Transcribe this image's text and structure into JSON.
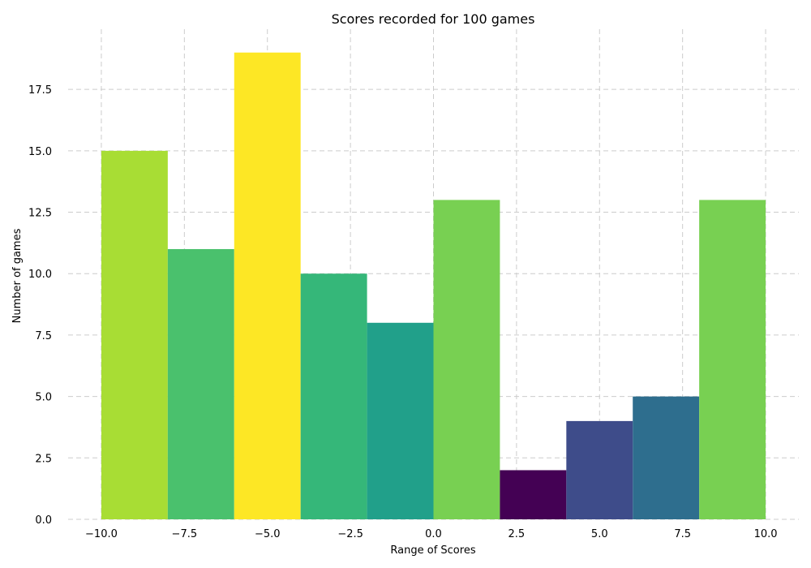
{
  "chart_data": {
    "type": "bar",
    "title": "Scores recorded for 100 games",
    "xlabel": "Range of Scores",
    "ylabel": "Number of games",
    "bin_edges": [
      -10,
      -8,
      -6,
      -4,
      -2,
      0,
      2,
      4,
      6,
      8,
      10
    ],
    "values": [
      15,
      11,
      19,
      10,
      8,
      13,
      2,
      4,
      5,
      13
    ],
    "colors": [
      "#a8dd34",
      "#4ac16d",
      "#fde725",
      "#35b779",
      "#21a08a",
      "#78d052",
      "#440154",
      "#3e4c8a",
      "#2e6e8e",
      "#78d052"
    ],
    "xlim": [
      -11,
      11
    ],
    "ylim": [
      0,
      19.95
    ],
    "xticks": [
      -10,
      -7.5,
      -5,
      -2.5,
      0,
      2.5,
      5,
      7.5,
      10
    ],
    "xtick_labels": [
      "−10.0",
      "−7.5",
      "−5.0",
      "−2.5",
      "0.0",
      "2.5",
      "5.0",
      "7.5",
      "10.0"
    ],
    "yticks": [
      0,
      2.5,
      5,
      7.5,
      10,
      12.5,
      15,
      17.5
    ],
    "ytick_labels": [
      "0.0",
      "2.5",
      "5.0",
      "7.5",
      "10.0",
      "12.5",
      "15.0",
      "17.5"
    ],
    "grid": true,
    "legend": "none"
  }
}
